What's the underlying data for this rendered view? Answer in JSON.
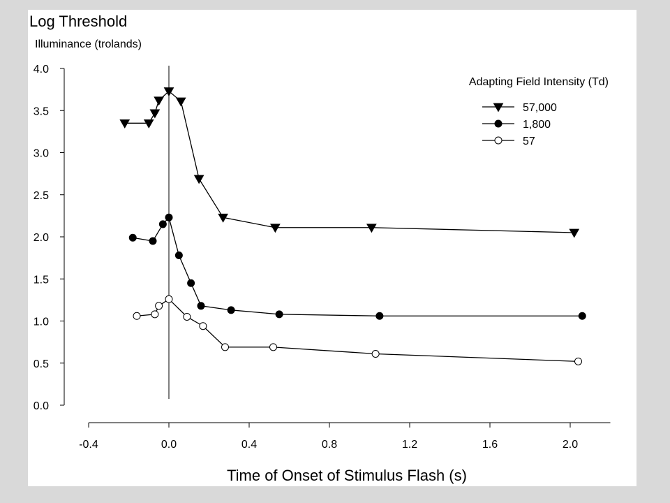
{
  "chart_data": {
    "type": "line",
    "title": "Log Threshold",
    "ylabel": "Illuminance (trolands)",
    "xlabel": "Time of Onset of Stimulus Flash (s)",
    "xlim": [
      -0.4,
      2.2
    ],
    "ylim": [
      0.0,
      4.0
    ],
    "xticks": [
      "-0.4",
      "0.0",
      "0.4",
      "0.8",
      "1.2",
      "1.6",
      "2.0"
    ],
    "yticks": [
      "0.0",
      "0.5",
      "1.0",
      "1.5",
      "2.0",
      "2.5",
      "3.0",
      "3.5",
      "4.0"
    ],
    "grid": false,
    "reference_line_x": 0.0,
    "legend": {
      "title": "Adapting Field Intensity (Td)",
      "placement": "top-right"
    },
    "series": [
      {
        "name": "57,000",
        "marker": "triangle-down",
        "x": [
          -0.22,
          -0.1,
          -0.07,
          -0.05,
          0.0,
          0.06,
          0.15,
          0.27,
          0.53,
          1.01,
          2.02
        ],
        "y": [
          3.35,
          3.35,
          3.47,
          3.62,
          3.73,
          3.61,
          2.69,
          2.23,
          2.11,
          2.11,
          2.05
        ]
      },
      {
        "name": "1,800",
        "marker": "filled-circle",
        "x": [
          -0.18,
          -0.08,
          -0.03,
          0.0,
          0.05,
          0.11,
          0.16,
          0.31,
          0.55,
          1.05,
          2.06
        ],
        "y": [
          1.99,
          1.95,
          2.15,
          2.23,
          1.78,
          1.45,
          1.18,
          1.13,
          1.08,
          1.06,
          1.06
        ]
      },
      {
        "name": "57",
        "marker": "open-circle",
        "x": [
          -0.16,
          -0.07,
          -0.05,
          0.0,
          0.09,
          0.17,
          0.28,
          0.52,
          1.03,
          2.04
        ],
        "y": [
          1.06,
          1.08,
          1.18,
          1.26,
          1.05,
          0.94,
          0.69,
          0.69,
          0.61,
          0.52
        ]
      }
    ]
  }
}
